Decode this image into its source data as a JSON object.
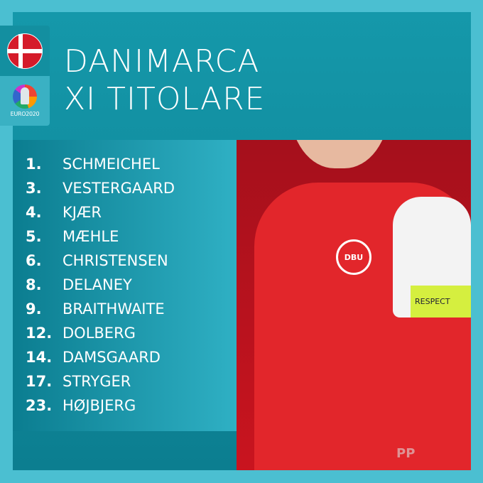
{
  "header": {
    "title_line1": "DANIMARCA",
    "title_line2": "XI TITOLARE"
  },
  "badge": {
    "flag_icon": "denmark-flag-icon",
    "logo_text": "EURO2020"
  },
  "lineup": [
    {
      "number": "1.",
      "name": "SCHMEICHEL"
    },
    {
      "number": "3.",
      "name": "VESTERGAARD"
    },
    {
      "number": "4.",
      "name": "KJÆR"
    },
    {
      "number": "5.",
      "name": "MÆHLE"
    },
    {
      "number": "6.",
      "name": "CHRISTENSEN"
    },
    {
      "number": "8.",
      "name": "DELANEY"
    },
    {
      "number": "9.",
      "name": "BRAITHWAITE"
    },
    {
      "number": "12.",
      "name": "DOLBERG"
    },
    {
      "number": "14.",
      "name": "DAMSGAARD"
    },
    {
      "number": "17.",
      "name": "STRYGER"
    },
    {
      "number": "23.",
      "name": "HØJBJERG"
    }
  ],
  "photo": {
    "crest_text": "DBU",
    "armband_text": "RESPECT"
  },
  "watermark": "PP",
  "colors": {
    "background": "#4bbfd1",
    "panel": "#1598aa",
    "shirt": "#e2262b"
  }
}
